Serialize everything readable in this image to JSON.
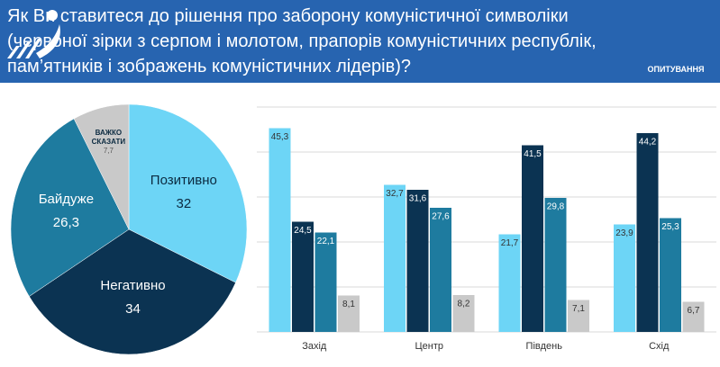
{
  "header": {
    "title": "Як Ви ставитеся до рішення про заборону комуністичної символіки (червоної зірки з серпом і молотом,  прапорів комуністичних республік, пам’ятників і зображень комуністичних лідерів)?",
    "logo_text": "ОПИТУВАННЯ"
  },
  "chart_data": [
    {
      "type": "pie",
      "categories": [
        "Позитивно",
        "Негативно",
        "Байдуже",
        "ВАЖКО СКАЗАТИ"
      ],
      "values": [
        32,
        34,
        26.3,
        7.7
      ],
      "value_labels": [
        "32",
        "34",
        "26,3",
        "7,7"
      ],
      "colors": [
        "#6dd5f6",
        "#0b3352",
        "#1e7b9f",
        "#c9c9c9"
      ]
    },
    {
      "type": "bar",
      "categories": [
        "Захід",
        "Центр",
        "Південь",
        "Схід"
      ],
      "series": [
        {
          "color": "#6dd5f6",
          "values": [
            45.3,
            32.7,
            21.7,
            23.9
          ],
          "value_labels": [
            "45,3",
            "32,7",
            "21,7",
            "23,9"
          ]
        },
        {
          "color": "#0b3352",
          "values": [
            24.5,
            31.6,
            41.5,
            44.2
          ],
          "value_labels": [
            "24,5",
            "31,6",
            "41,5",
            "44,2"
          ]
        },
        {
          "color": "#1e7b9f",
          "values": [
            22.1,
            27.6,
            29.8,
            25.3
          ],
          "value_labels": [
            "22,1",
            "27,6",
            "29,8",
            "25,3"
          ]
        },
        {
          "color": "#c9c9c9",
          "values": [
            8.1,
            8.2,
            7.1,
            6.7
          ],
          "value_labels": [
            "8,1",
            "8,2",
            "7,1",
            "6,7"
          ]
        }
      ],
      "ylim": [
        0,
        50
      ],
      "yticks": [
        0,
        10,
        20,
        30,
        40,
        50
      ],
      "grid": true
    }
  ]
}
